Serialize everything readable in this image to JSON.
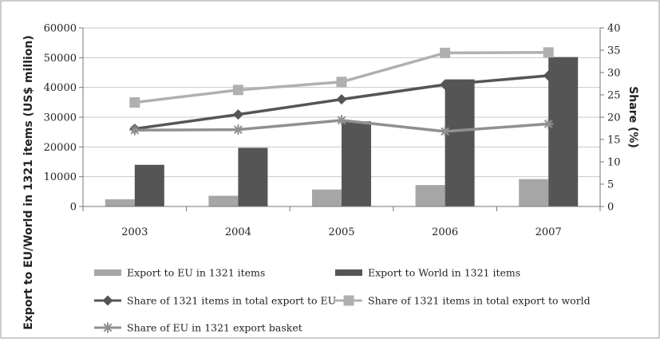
{
  "chart_data": {
    "type": "bar",
    "categories": [
      "2003",
      "2004",
      "2005",
      "2006",
      "2007"
    ],
    "left_axis": {
      "label": "Export to EU/World in 1321 items (US$ million)",
      "ylim": [
        0,
        60000
      ],
      "ticks": [
        "0",
        "10000",
        "20000",
        "30000",
        "40000",
        "50000",
        "60000"
      ]
    },
    "right_axis": {
      "label": "Share (%)",
      "ylim": [
        0,
        40
      ],
      "ticks": [
        "0",
        "5",
        "10",
        "15",
        "20",
        "25",
        "30",
        "35",
        "40"
      ]
    },
    "series": [
      {
        "name": "Export to EU in 1321 items",
        "type": "bar",
        "axis": "left",
        "color": "#a6a6a6",
        "values": [
          2400,
          3600,
          5700,
          7200,
          9200
        ]
      },
      {
        "name": "Export to World in 1321 items",
        "type": "bar",
        "axis": "left",
        "color": "#555555",
        "values": [
          14000,
          19700,
          28600,
          42700,
          50200
        ]
      },
      {
        "name": "Share of 1321 items in total export to EU",
        "type": "line",
        "axis": "right",
        "color": "#555555",
        "marker": "diamond",
        "values": [
          17.4,
          20.6,
          24.0,
          27.3,
          29.3
        ]
      },
      {
        "name": "Share of 1321 items in total export to world",
        "type": "line",
        "axis": "right",
        "color": "#b0b0b0",
        "marker": "square",
        "values": [
          23.3,
          26.1,
          27.9,
          34.4,
          34.5
        ]
      },
      {
        "name": "Share of EU in 1321 export basket",
        "type": "line",
        "axis": "right",
        "color": "#909090",
        "marker": "star",
        "values": [
          17.1,
          17.2,
          19.3,
          16.8,
          18.5
        ]
      }
    ],
    "grid": true,
    "legend_position": "bottom"
  }
}
